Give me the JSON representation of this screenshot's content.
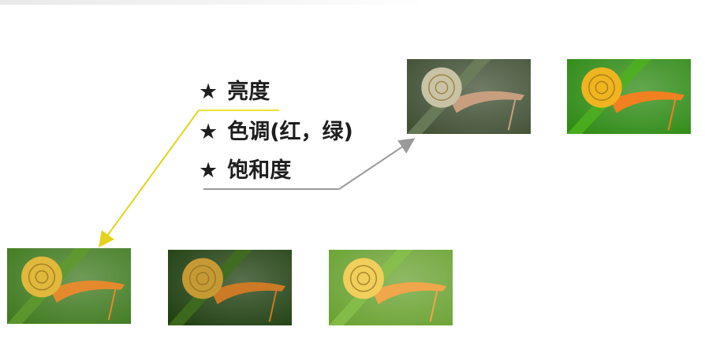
{
  "bullets": [
    {
      "star": "★",
      "text": "亮度"
    },
    {
      "star": "★",
      "text": "色调(红，绿)"
    },
    {
      "star": "★",
      "text": "饱和度"
    }
  ],
  "colors": {
    "highlight_line": "#f0e132",
    "highlight_arrow": "#e6d21e",
    "gray_arrow": "#9a9a9a",
    "text": "#1e1e1e"
  },
  "images": [
    {
      "name": "snail-original",
      "bg": "#3f7a1f",
      "shell": "#e0b83c",
      "body": "#e48a2c",
      "stem": "#5f9a2d"
    },
    {
      "name": "snail-dark",
      "bg": "#1f3f10",
      "shell": "#c59a35",
      "body": "#cc7a26",
      "stem": "#3f6f1d"
    },
    {
      "name": "snail-bright",
      "bg": "#6aa232",
      "shell": "#f0cf5c",
      "body": "#f0a64a",
      "stem": "#87bf4a"
    },
    {
      "name": "snail-desaturated",
      "bg": "#3f4f33",
      "shell": "#c9c3a6",
      "body": "#c79f7e",
      "stem": "#6d7f5c"
    },
    {
      "name": "snail-saturated",
      "bg": "#2e8a14",
      "shell": "#f0b420",
      "body": "#f08020",
      "stem": "#4fb01e"
    }
  ]
}
